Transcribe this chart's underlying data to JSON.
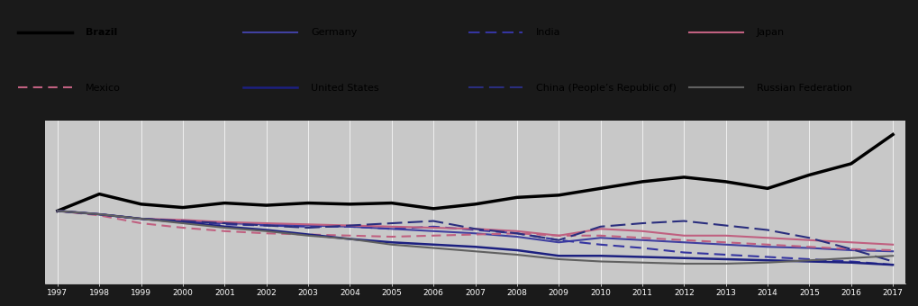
{
  "years": [
    1997,
    1998,
    1999,
    2000,
    2001,
    2002,
    2003,
    2004,
    2005,
    2006,
    2007,
    2008,
    2009,
    2010,
    2011,
    2012,
    2013,
    2014,
    2015,
    2016,
    2017
  ],
  "series": {
    "Brazil": [
      1.0,
      1.15,
      1.06,
      1.03,
      1.07,
      1.05,
      1.07,
      1.06,
      1.07,
      1.02,
      1.06,
      1.12,
      1.14,
      1.2,
      1.26,
      1.3,
      1.26,
      1.2,
      1.32,
      1.42,
      1.68
    ],
    "Germany": [
      1.0,
      0.97,
      0.93,
      0.91,
      0.89,
      0.88,
      0.87,
      0.86,
      0.84,
      0.82,
      0.8,
      0.77,
      0.72,
      0.76,
      0.74,
      0.72,
      0.7,
      0.68,
      0.67,
      0.65,
      0.64
    ],
    "India": [
      1.0,
      0.97,
      0.93,
      0.91,
      0.88,
      0.87,
      0.86,
      0.86,
      0.84,
      0.86,
      0.83,
      0.8,
      0.74,
      0.7,
      0.67,
      0.63,
      0.61,
      0.59,
      0.57,
      0.55,
      0.52
    ],
    "Japan": [
      1.0,
      0.97,
      0.93,
      0.92,
      0.9,
      0.89,
      0.88,
      0.87,
      0.86,
      0.85,
      0.84,
      0.82,
      0.78,
      0.84,
      0.82,
      0.78,
      0.78,
      0.76,
      0.74,
      0.72,
      0.7
    ],
    "Mexico": [
      1.0,
      0.96,
      0.89,
      0.85,
      0.82,
      0.8,
      0.79,
      0.78,
      0.77,
      0.78,
      0.79,
      0.8,
      0.78,
      0.78,
      0.76,
      0.74,
      0.72,
      0.7,
      0.68,
      0.66,
      0.65
    ],
    "United States": [
      1.0,
      0.97,
      0.93,
      0.9,
      0.86,
      0.83,
      0.79,
      0.75,
      0.72,
      0.7,
      0.68,
      0.65,
      0.6,
      0.6,
      0.59,
      0.58,
      0.57,
      0.56,
      0.55,
      0.54,
      0.52
    ],
    "China": [
      1.0,
      0.97,
      0.93,
      0.91,
      0.89,
      0.87,
      0.85,
      0.87,
      0.89,
      0.91,
      0.84,
      0.8,
      0.74,
      0.86,
      0.89,
      0.91,
      0.87,
      0.83,
      0.76,
      0.66,
      0.55
    ],
    "Russian Federation": [
      1.0,
      0.97,
      0.93,
      0.89,
      0.85,
      0.82,
      0.78,
      0.75,
      0.7,
      0.67,
      0.64,
      0.61,
      0.57,
      0.55,
      0.54,
      0.53,
      0.53,
      0.54,
      0.56,
      0.58,
      0.6
    ]
  },
  "styles": {
    "Brazil": {
      "color": "#000000",
      "lw": 2.5,
      "dash": null
    },
    "Germany": {
      "color": "#4040a0",
      "lw": 1.5,
      "dash": null
    },
    "India": {
      "color": "#3535a0",
      "lw": 1.5,
      "dash": [
        6,
        3
      ]
    },
    "Japan": {
      "color": "#c06080",
      "lw": 1.5,
      "dash": null
    },
    "Mexico": {
      "color": "#c06080",
      "lw": 1.5,
      "dash": [
        5,
        3
      ]
    },
    "United States": {
      "color": "#1c2080",
      "lw": 1.8,
      "dash": null
    },
    "China": {
      "color": "#2a2e7e",
      "lw": 1.5,
      "dash": [
        8,
        3
      ]
    },
    "Russian Federation": {
      "color": "#606060",
      "lw": 1.5,
      "dash": null
    }
  },
  "legend_entries": [
    {
      "label": "Brazil",
      "color": "#000000",
      "lw": 2.5,
      "bold": true,
      "dash": null
    },
    {
      "label": "Germany",
      "color": "#4040a0",
      "lw": 1.5,
      "bold": false,
      "dash": null
    },
    {
      "label": "India",
      "color": "#3535a0",
      "lw": 1.5,
      "bold": false,
      "dash": [
        6,
        3
      ]
    },
    {
      "label": "Japan",
      "color": "#c06080",
      "lw": 1.5,
      "bold": false,
      "dash": null
    },
    {
      "label": "Mexico",
      "color": "#c06080",
      "lw": 1.5,
      "bold": false,
      "dash": [
        5,
        3
      ]
    },
    {
      "label": "United States",
      "color": "#1c2080",
      "lw": 1.8,
      "bold": false,
      "dash": null
    },
    {
      "label": "China (People’s Republic of)",
      "color": "#2a2e7e",
      "lw": 1.5,
      "bold": false,
      "dash": [
        8,
        3
      ]
    },
    {
      "label": "Russian Federation",
      "color": "#606060",
      "lw": 1.5,
      "bold": false,
      "dash": null
    }
  ],
  "xlim": [
    1997,
    2017
  ],
  "ylim": [
    0.35,
    1.8
  ],
  "legend_bg": "#d4d4d4",
  "plot_bg": "#c8c8c8",
  "outer_bg": "#1a1a1a",
  "grid_color": "#ffffff",
  "tick_label_color": "#ffffff"
}
